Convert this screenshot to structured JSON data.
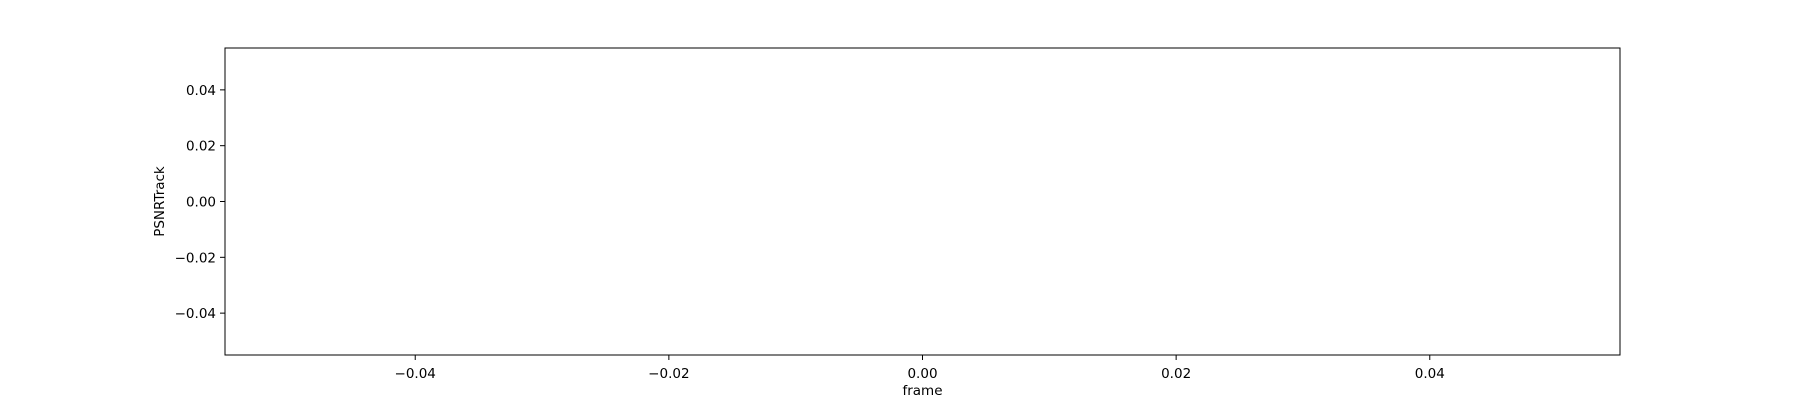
{
  "chart_data": {
    "type": "line",
    "xlabel": "frame",
    "ylabel": "PSNRTrack",
    "xlim": [
      -0.055,
      0.055
    ],
    "ylim": [
      -0.055,
      0.055
    ],
    "xticks": [
      -0.04,
      -0.02,
      0.0,
      0.02,
      0.04
    ],
    "xtick_labels": [
      "−0.04",
      "−0.02",
      "0.00",
      "0.02",
      "0.04"
    ],
    "yticks": [
      0.04,
      0.02,
      0.0,
      -0.02,
      -0.04
    ],
    "ytick_labels": [
      "0.04",
      "0.02",
      "0.00",
      "−0.02",
      "−0.04"
    ],
    "series": [],
    "grid": false,
    "colors": {
      "axes": "#000000",
      "background": "#ffffff"
    }
  }
}
